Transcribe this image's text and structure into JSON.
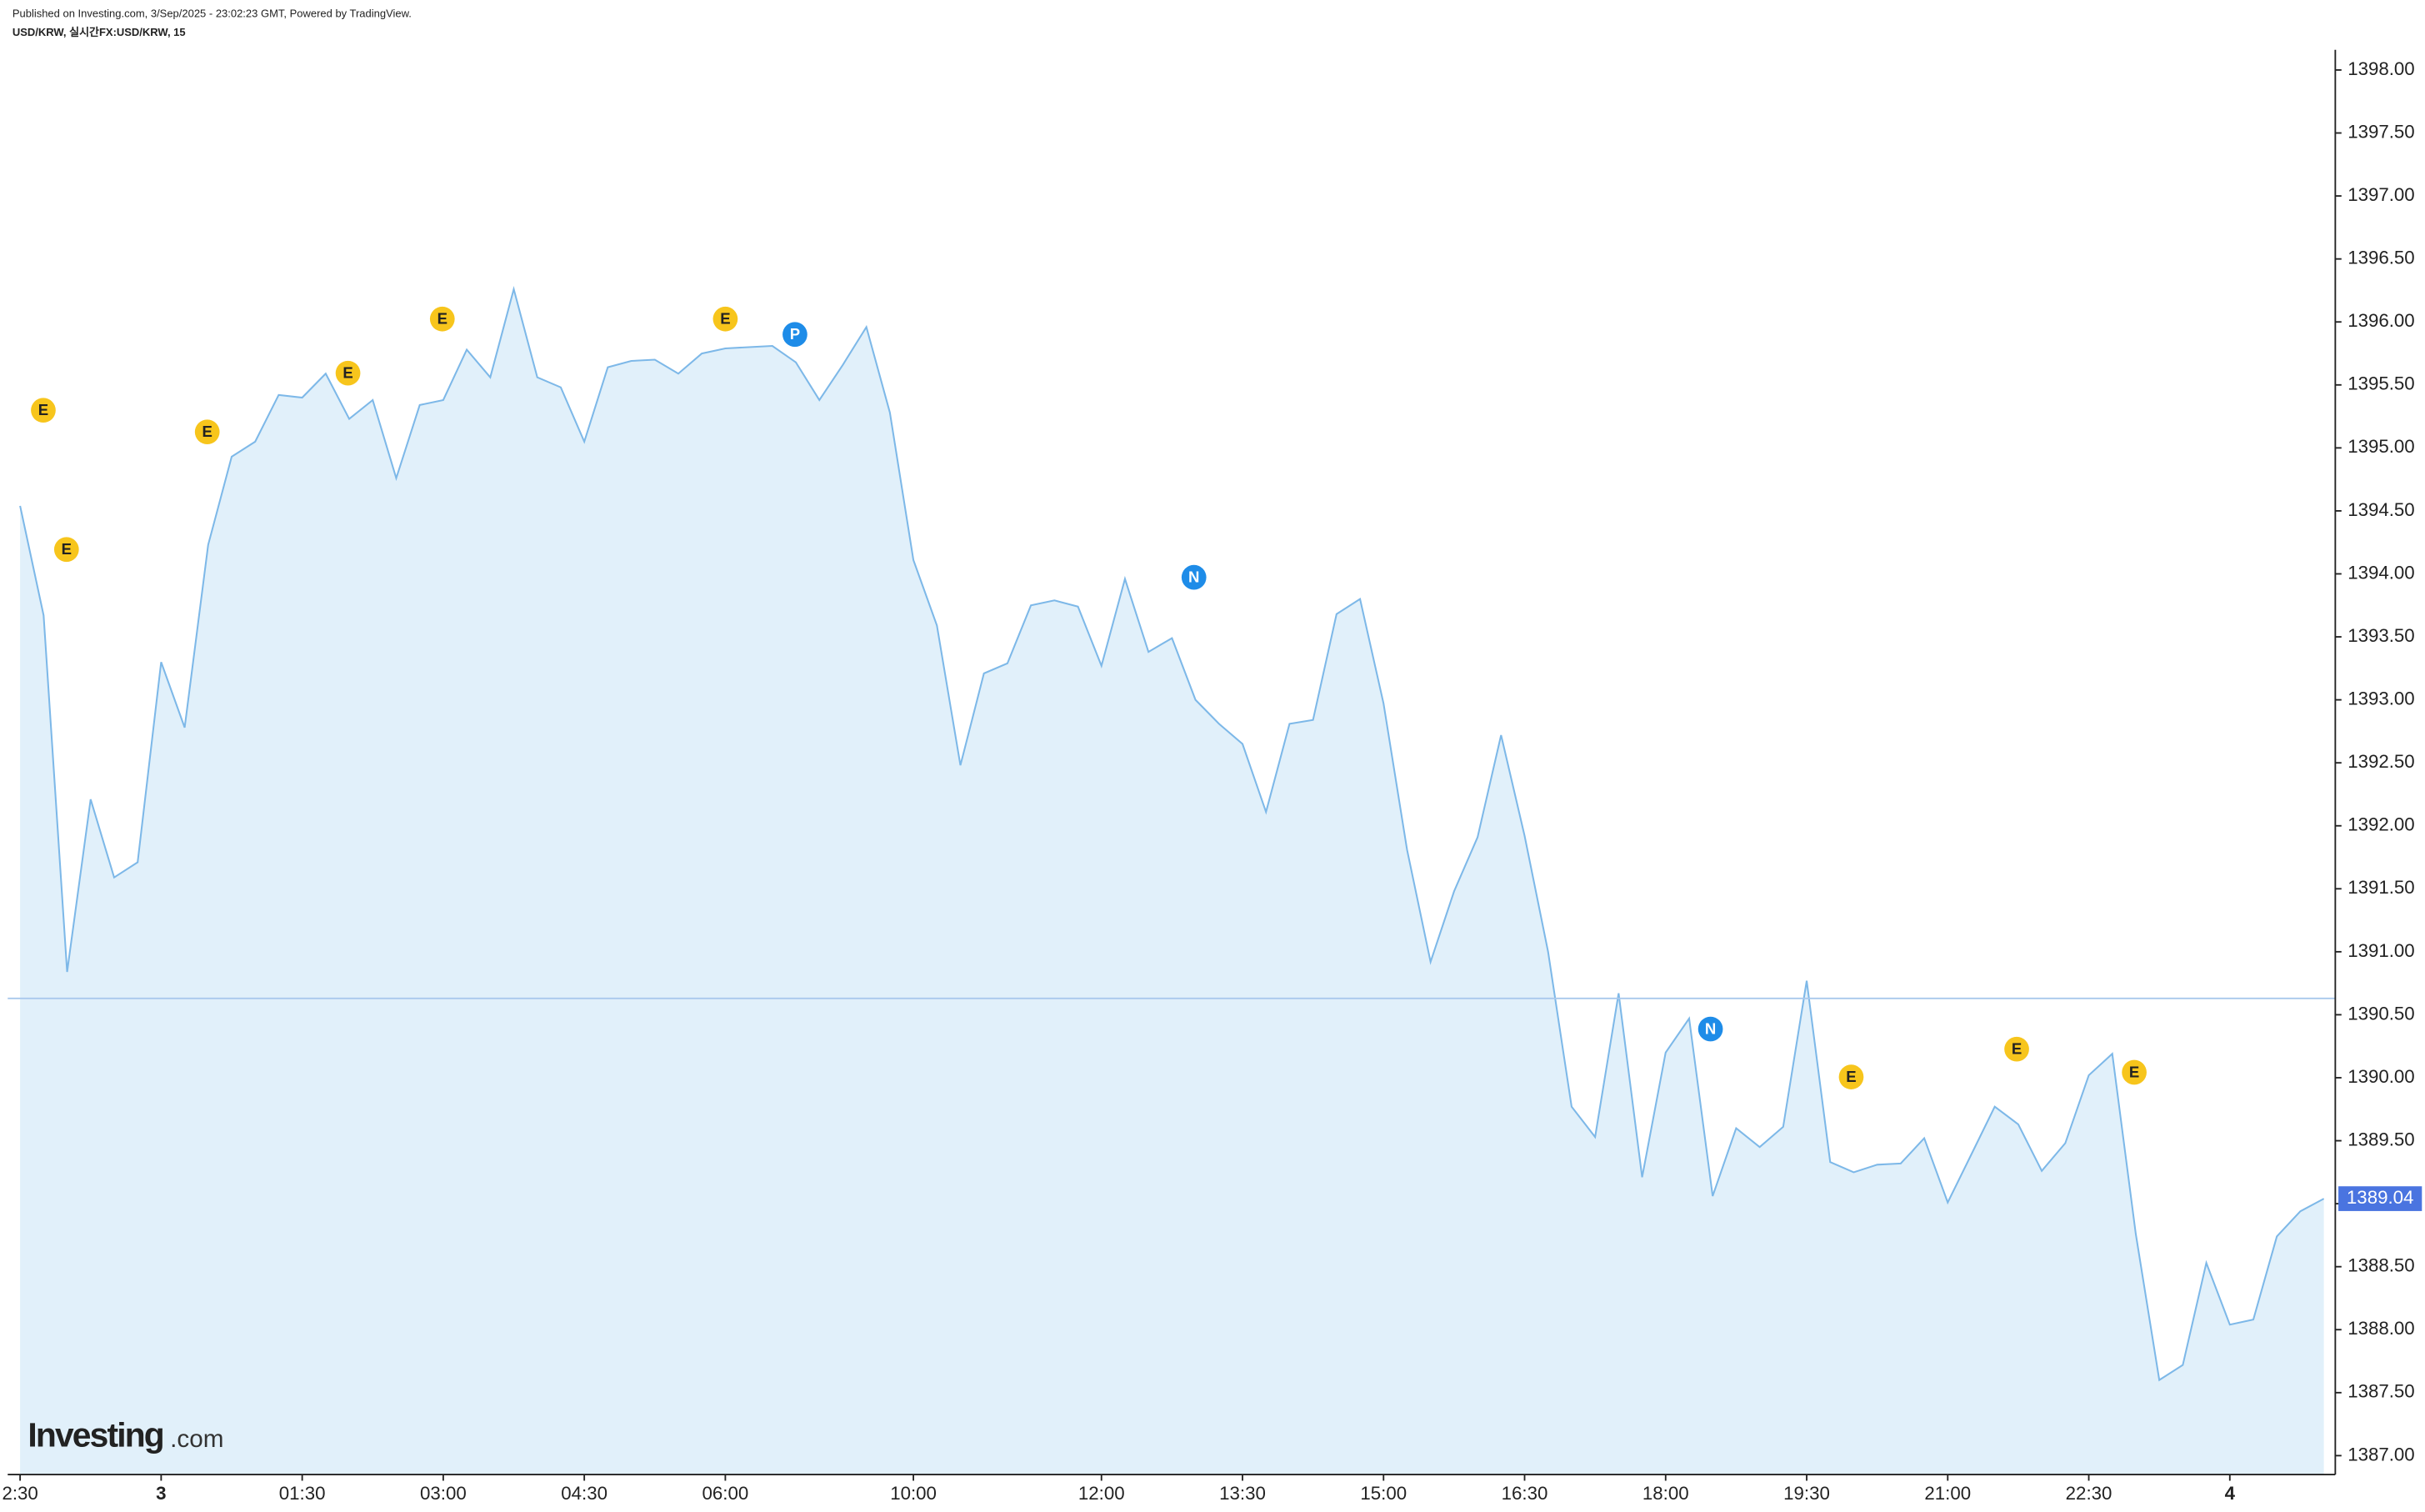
{
  "header": {
    "published": "Published on Investing.com, 3/Sep/2025 - 23:02:23 GMT, Powered by TradingView.",
    "symbol": "USD/KRW, 실시간FX:USD/KRW, 15"
  },
  "logo": {
    "brand": "Investing",
    "suffix": ".com"
  },
  "chart_data": {
    "type": "area",
    "categories": [
      "2:30",
      null,
      null,
      null,
      null,
      null,
      "3",
      null,
      null,
      null,
      null,
      null,
      "01:30",
      null,
      null,
      null,
      null,
      null,
      "03:00",
      null,
      null,
      null,
      null,
      null,
      "04:30",
      null,
      null,
      null,
      null,
      null,
      "06:00",
      null,
      null,
      null,
      null,
      null,
      null,
      null,
      "10:00",
      null,
      null,
      null,
      null,
      null,
      null,
      null,
      "12:00",
      null,
      null,
      null,
      null,
      null,
      "13:30",
      null,
      null,
      null,
      null,
      null,
      "15:00",
      null,
      null,
      null,
      null,
      null,
      "16:30",
      null,
      null,
      null,
      null,
      null,
      "18:00",
      null,
      null,
      null,
      null,
      null,
      "19:30",
      null,
      null,
      null,
      null,
      null,
      "21:00",
      null,
      null,
      null,
      null,
      null,
      "22:30",
      null,
      null,
      null,
      null,
      null,
      "4",
      null,
      null,
      null,
      null
    ],
    "values": [
      1394.54,
      1393.67,
      1390.84,
      1392.21,
      1391.59,
      1391.71,
      1393.3,
      1392.78,
      1394.23,
      1394.93,
      1395.05,
      1395.42,
      1395.4,
      1395.59,
      1395.23,
      1395.38,
      1394.76,
      1395.34,
      1395.38,
      1395.78,
      1395.56,
      1396.26,
      1395.56,
      1395.48,
      1395.05,
      1395.64,
      1395.69,
      1395.7,
      1395.59,
      1395.75,
      1395.79,
      1395.8,
      1395.81,
      1395.68,
      1395.38,
      1395.66,
      1395.96,
      1395.28,
      1394.11,
      1393.59,
      1392.48,
      1393.21,
      1393.29,
      1393.75,
      1393.79,
      1393.74,
      1393.27,
      1393.96,
      1393.38,
      1393.49,
      1393.0,
      1392.81,
      1392.65,
      1392.11,
      1392.81,
      1392.84,
      1393.68,
      1393.8,
      1392.97,
      1391.81,
      1390.92,
      1391.48,
      1391.91,
      1392.72,
      1391.92,
      1391.0,
      1389.77,
      1389.53,
      1390.67,
      1389.21,
      1390.2,
      1390.47,
      1389.06,
      1389.6,
      1389.45,
      1389.61,
      1390.77,
      1389.33,
      1389.25,
      1389.31,
      1389.32,
      1389.52,
      1389.01,
      1389.39,
      1389.77,
      1389.63,
      1389.26,
      1389.48,
      1390.02,
      1390.19,
      1388.76,
      1387.6,
      1387.72,
      1388.53,
      1388.04,
      1388.08,
      1388.74,
      1388.94,
      1389.04
    ],
    "color": "#7db8e8",
    "fill": "#e1f0fa",
    "reference_line": 1390.63,
    "ylim": [
      1386.85,
      1398.16
    ],
    "yticks": [
      {
        "value": 1387,
        "label": "1387.00"
      },
      {
        "value": 1387.5,
        "label": "1387.50"
      },
      {
        "value": 1388,
        "label": "1388.00"
      },
      {
        "value": 1388.5,
        "label": "1388.50"
      },
      {
        "value": 1389,
        "label": "1389.00"
      },
      {
        "value": 1389.5,
        "label": "1389.50"
      },
      {
        "value": 1390,
        "label": "1390.00"
      },
      {
        "value": 1390.5,
        "label": "1390.50"
      },
      {
        "value": 1391,
        "label": "1391.00"
      },
      {
        "value": 1391.5,
        "label": "1391.50"
      },
      {
        "value": 1392,
        "label": "1392.00"
      },
      {
        "value": 1392.5,
        "label": "1392.50"
      },
      {
        "value": 1393,
        "label": "1393.00"
      },
      {
        "value": 1393.5,
        "label": "1393.50"
      },
      {
        "value": 1394,
        "label": "1394.00"
      },
      {
        "value": 1394.5,
        "label": "1394.50"
      },
      {
        "value": 1395,
        "label": "1395.00"
      },
      {
        "value": 1395.5,
        "label": "1395.50"
      },
      {
        "value": 1396,
        "label": "1396.00"
      },
      {
        "value": 1396.5,
        "label": "1396.50"
      },
      {
        "value": 1397,
        "label": "1397.00"
      },
      {
        "value": 1397.5,
        "label": "1397.50"
      },
      {
        "value": 1398,
        "label": "1398.00"
      }
    ],
    "events": [
      "E",
      "E",
      "E",
      "E",
      "E",
      "E",
      "P",
      "N",
      "N",
      "E",
      "E",
      "E"
    ]
  }
}
